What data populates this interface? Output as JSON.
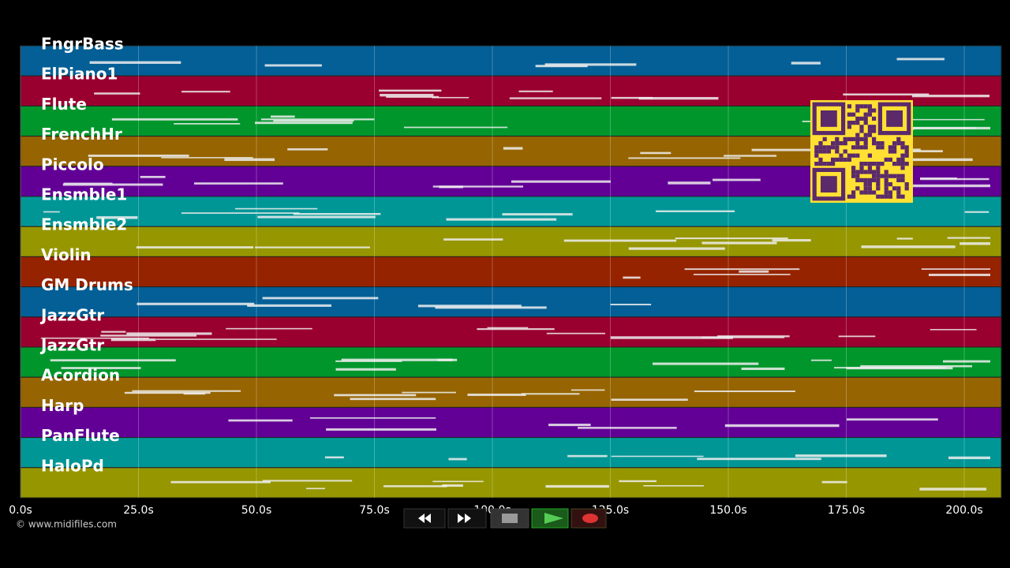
{
  "tracks": [
    "FngrBass",
    "ElPiano1",
    "Flute",
    "FrenchHr",
    "Piccolo",
    "Ensmble1",
    "Ensmble2",
    "Violin",
    "GM Drums",
    "JazzGtr",
    "JazzGtr",
    "Acordion",
    "Harp",
    "PanFlute",
    "HaloPd"
  ],
  "axis": {
    "ticks": [
      "0.0s",
      "25.0s",
      "50.0s",
      "75.0s",
      "100.0s",
      "125.0s",
      "150.0s",
      "175.0s",
      "200.0s"
    ]
  },
  "credit": "© www.midifiles.com"
}
